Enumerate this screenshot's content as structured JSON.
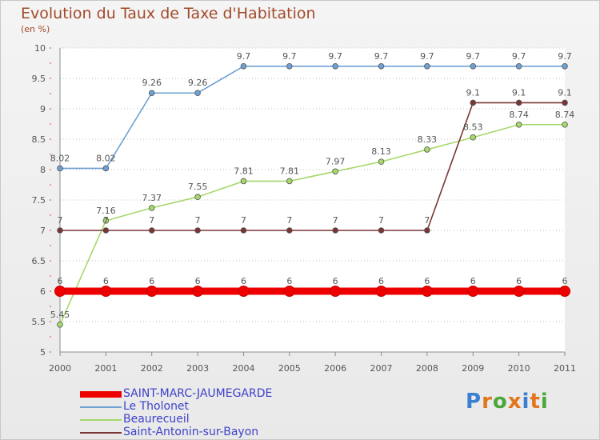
{
  "title": "Evolution du Taux de Taxe d'Habitation",
  "subtitle": "(en %)",
  "logo": {
    "text": "Proxiti",
    "letters": [
      {
        "ch": "P",
        "color": "#3a7fd0"
      },
      {
        "ch": "r",
        "color": "#e2761d"
      },
      {
        "ch": "o",
        "color": "#4aa83a"
      },
      {
        "ch": "x",
        "color": "#e2761d"
      },
      {
        "ch": "i",
        "color": "#3a7fd0"
      },
      {
        "ch": "t",
        "color": "#e2761d"
      },
      {
        "ch": "i",
        "color": "#4aa83a"
      }
    ]
  },
  "chart_data": {
    "type": "line",
    "title": "Evolution du Taux de Taxe d'Habitation",
    "ylabel": "(en %)",
    "xlabel": "",
    "x": [
      "2000",
      "2001",
      "2002",
      "2003",
      "2004",
      "2005",
      "2006",
      "2007",
      "2008",
      "2009",
      "2010",
      "2011"
    ],
    "ylim": [
      5,
      10
    ],
    "yticks": [
      "5",
      "5.5",
      "6",
      "6.5",
      "7",
      "7.5",
      "8",
      "8.5",
      "9",
      "9.5",
      "10"
    ],
    "grid": "horizontal, dotted",
    "legend": "bottom-left",
    "series": [
      {
        "name": "SAINT-MARC-JAUMEGARDE",
        "color": "#ee0000",
        "values": [
          6,
          6,
          6,
          6,
          6,
          6,
          6,
          6,
          6,
          6,
          6,
          6
        ],
        "labels": [
          "6",
          "6",
          "6",
          "6",
          "6",
          "6",
          "6",
          "6",
          "6",
          "6",
          "6",
          "6"
        ],
        "thick": true
      },
      {
        "name": "Le Tholonet",
        "color": "#6ea0d2",
        "values": [
          8.02,
          8.02,
          9.26,
          9.26,
          9.7,
          9.7,
          9.7,
          9.7,
          9.7,
          9.7,
          9.7,
          9.7
        ],
        "labels": [
          "8.02",
          "8.02",
          "9.26",
          "9.26",
          "9.7",
          "9.7",
          "9.7",
          "9.7",
          "9.7",
          "9.7",
          "9.7",
          "9.7"
        ],
        "thick": false
      },
      {
        "name": "Beaurecueil",
        "color": "#a6d86a",
        "values": [
          5.45,
          7.16,
          7.37,
          7.55,
          7.81,
          7.81,
          7.97,
          8.13,
          8.33,
          8.53,
          8.74,
          8.74
        ],
        "labels": [
          "5.45",
          "7.16",
          "7.37",
          "7.55",
          "7.81",
          "7.81",
          "7.97",
          "8.13",
          "8.33",
          "8.53",
          "8.74",
          "8.74"
        ],
        "thick": false
      },
      {
        "name": "Saint-Antonin-sur-Bayon",
        "color": "#7a3535",
        "values": [
          7,
          7,
          7,
          7,
          7,
          7,
          7,
          7,
          7,
          9.1,
          9.1,
          9.1
        ],
        "labels": [
          "7",
          "7",
          "7",
          "7",
          "7",
          "7",
          "7",
          "7",
          "7",
          "9.1",
          "9.1",
          "9.1"
        ],
        "thick": false
      }
    ]
  }
}
